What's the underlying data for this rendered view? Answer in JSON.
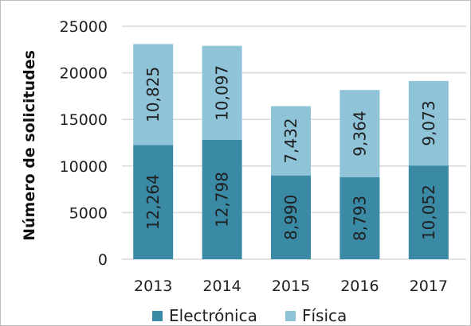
{
  "chart_data": {
    "type": "bar",
    "stacked": true,
    "categories": [
      "2013",
      "2014",
      "2015",
      "2016",
      "2017"
    ],
    "series": [
      {
        "name": "Electrónica",
        "values": [
          12264,
          12798,
          8990,
          8793,
          10052
        ],
        "labels": [
          "12,264",
          "12,798",
          "8,990",
          "8,793",
          "10,052"
        ],
        "color": "#3a8aa6"
      },
      {
        "name": "Física",
        "values": [
          10825,
          10097,
          7432,
          9364,
          9073
        ],
        "labels": [
          "10,825",
          "10,097",
          "7,432",
          "9,364",
          "9,073"
        ],
        "color": "#8ec3d8"
      }
    ],
    "ylabel": "Número de solicitudes",
    "xlabel": "",
    "ylim": [
      0,
      25000
    ],
    "yticks": [
      "0",
      "5000",
      "10000",
      "15000",
      "20000",
      "25000"
    ],
    "grid": true,
    "legend": "bottom"
  }
}
